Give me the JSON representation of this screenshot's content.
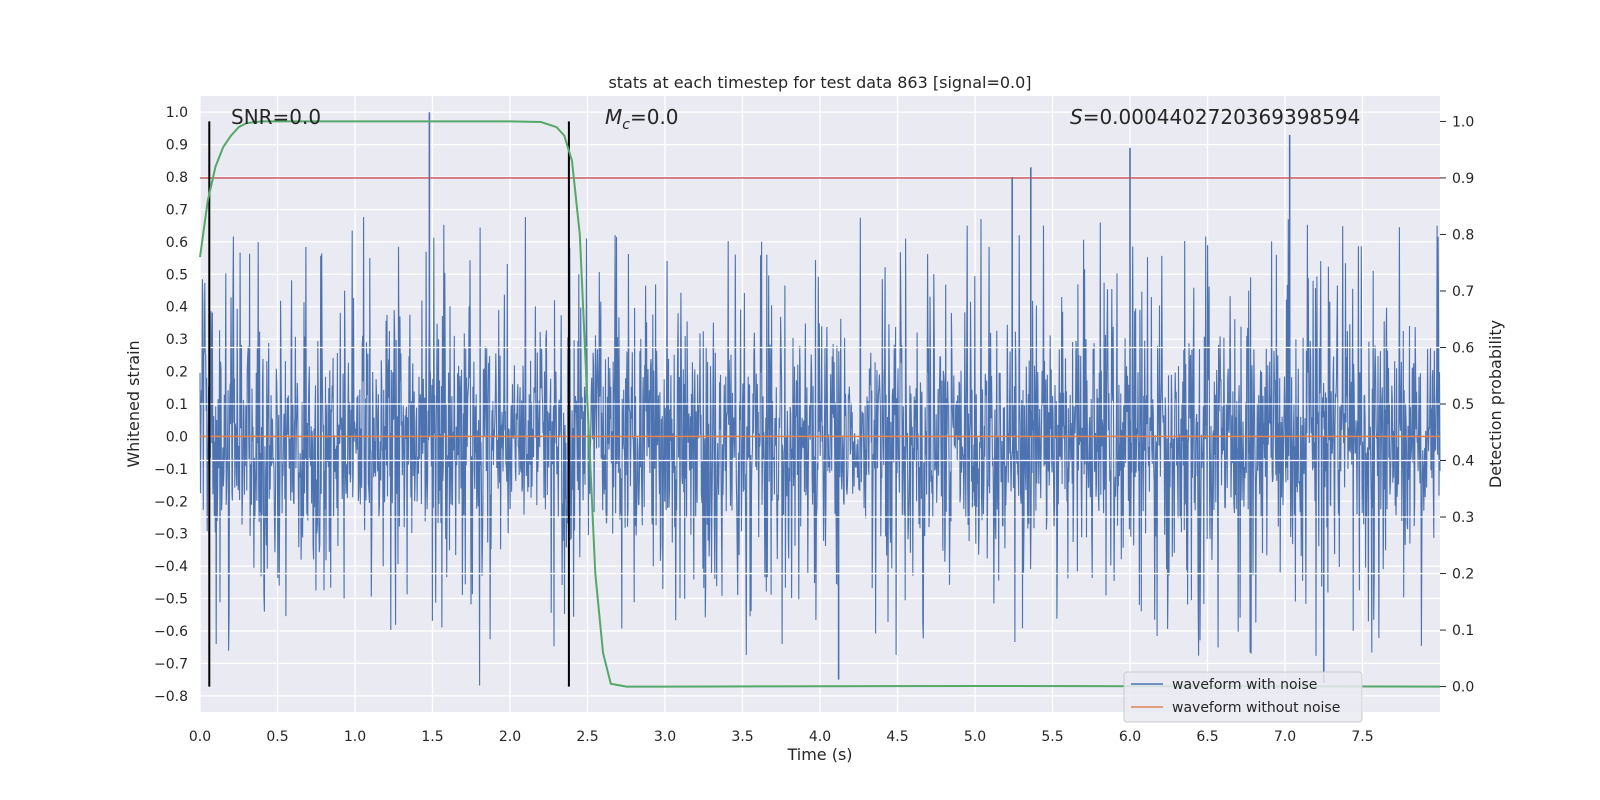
{
  "chart_data": {
    "type": "line",
    "title": "stats at each timestep for test data 863 [signal=0.0]",
    "xlabel": "Time (s)",
    "ylabel_left": "Whitened strain",
    "ylabel_right": "Detection probability",
    "xlim": [
      0.0,
      8.0
    ],
    "ylim_left": [
      -0.85,
      1.05
    ],
    "ylim_right": [
      -0.045,
      1.045
    ],
    "xticks": [
      "0.0",
      "0.5",
      "1.0",
      "1.5",
      "2.0",
      "2.5",
      "3.0",
      "3.5",
      "4.0",
      "4.5",
      "5.0",
      "5.5",
      "6.0",
      "6.5",
      "7.0",
      "7.5"
    ],
    "yticks_left": [
      "-0.8",
      "-0.7",
      "-0.6",
      "-0.5",
      "-0.4",
      "-0.3",
      "-0.2",
      "-0.1",
      "0.0",
      "0.1",
      "0.2",
      "0.3",
      "0.4",
      "0.5",
      "0.6",
      "0.7",
      "0.8",
      "0.9",
      "1.0"
    ],
    "yticks_right": [
      "0.0",
      "0.1",
      "0.2",
      "0.3",
      "0.4",
      "0.5",
      "0.6",
      "0.7",
      "0.8",
      "0.9",
      "1.0"
    ],
    "grid": true,
    "annotations": {
      "snr": "SNR=0.0",
      "mc_symbol": "M",
      "mc_sub": "c",
      "mc_value": "=0.0",
      "s_symbol": "S",
      "s_value": "=0.0004402720369398594"
    },
    "vertical_lines_x": [
      0.06,
      2.38
    ],
    "threshold_probability": 0.9,
    "noise_peaks": [
      {
        "x": 1.48,
        "y": 1.0
      },
      {
        "x": 6.0,
        "y": 0.89
      },
      {
        "x": 7.03,
        "y": 0.93
      },
      {
        "x": 5.36,
        "y": 0.83
      },
      {
        "x": 5.24,
        "y": 0.8
      },
      {
        "x": 7.25,
        "y": -0.76
      },
      {
        "x": 4.12,
        "y": -0.75
      }
    ],
    "noise_amplitude_typical": 0.45,
    "series": [
      {
        "name": "waveform with noise",
        "color": "#4c72b0",
        "kind": "noise"
      },
      {
        "name": "waveform without noise",
        "color": "#dd8452",
        "x": [
          0.0,
          8.0
        ],
        "y": [
          0.0,
          0.0
        ]
      },
      {
        "name": "",
        "color": "#55a868",
        "axis": "right",
        "x": [
          0.0,
          0.05,
          0.1,
          0.15,
          0.2,
          0.25,
          0.3,
          0.4,
          0.6,
          1.0,
          1.5,
          2.0,
          2.2,
          2.3,
          2.35,
          2.4,
          2.45,
          2.5,
          2.55,
          2.6,
          2.65,
          2.75,
          3.0,
          5.0,
          8.0
        ],
        "y": [
          0.76,
          0.86,
          0.92,
          0.955,
          0.975,
          0.99,
          0.997,
          1.0,
          1.0,
          1.0,
          1.0,
          1.0,
          0.999,
          0.99,
          0.975,
          0.93,
          0.8,
          0.5,
          0.2,
          0.06,
          0.005,
          0.0,
          0.0,
          0.001,
          0.0
        ]
      },
      {
        "name": "",
        "color": "#c44e52",
        "axis": "right",
        "x": [
          0.0,
          8.0
        ],
        "y": [
          0.9,
          0.9
        ]
      }
    ],
    "legend": {
      "position": "lower-right",
      "entries": [
        "waveform with noise",
        "waveform without noise"
      ]
    }
  }
}
